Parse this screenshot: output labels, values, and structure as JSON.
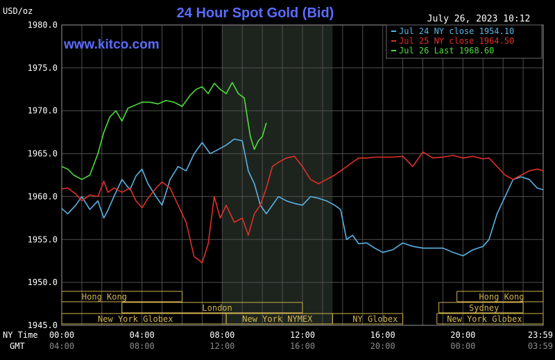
{
  "chart_data": {
    "type": "line",
    "title": "24 Hour Spot Gold (Bid)",
    "ylabel": "USD/oz",
    "timestamp": "July 26, 2023 10:12",
    "watermark": "www.kitco.com",
    "ylim": [
      1945,
      1980
    ],
    "y_ticks": [
      "1980.0",
      "1975.0",
      "1970.0",
      "1965.0",
      "1960.0",
      "1955.0",
      "1950.0",
      "1945.0"
    ],
    "y_tick_values": [
      1980,
      1975,
      1970,
      1965,
      1960,
      1955,
      1950,
      1945
    ],
    "xlim": [
      0,
      24
    ],
    "x_tick_values": [
      0,
      4,
      8,
      12,
      16,
      20,
      23.983
    ],
    "x_ticks_ny": [
      "00:00",
      "04:00",
      "08:00",
      "12:00",
      "16:00",
      "20:00",
      "23:59"
    ],
    "x_ticks_gmt": [
      "04:00",
      "08:00",
      "12:00",
      "16:00",
      "20:00",
      "00:00",
      "03:59"
    ],
    "row_labels": {
      "ny": "NY Time",
      "gmt": "GMT"
    },
    "grid": true,
    "highlight_band": [
      8.0,
      13.5
    ],
    "legend_position": "top-right",
    "colors": {
      "jul24": "#5ab4e6",
      "jul25": "#e0302a",
      "jul26": "#4fdc3c",
      "axis_text": "#ffffff",
      "title": "#5a6cff",
      "session": "#d2b450",
      "grid": "#505050"
    },
    "series": [
      {
        "name": "Jul 24 NY close 1954.10",
        "color": "#5ab4e6",
        "x": [
          0,
          0.3,
          0.7,
          1.0,
          1.4,
          1.8,
          2.1,
          2.3,
          2.6,
          3.0,
          3.4,
          3.7,
          4.0,
          4.3,
          4.7,
          5.0,
          5.4,
          5.8,
          6.2,
          6.6,
          7.0,
          7.4,
          7.8,
          8.2,
          8.6,
          9.0,
          9.3,
          9.6,
          9.9,
          10.2,
          10.5,
          10.8,
          11.2,
          11.6,
          12.0,
          12.4,
          12.8,
          13.2,
          13.6,
          13.9,
          14.2,
          14.5,
          14.8,
          15.2,
          15.6,
          16.0,
          16.5,
          17.0,
          17.5,
          18.0,
          18.5,
          19.0,
          19.5,
          20.0,
          20.5,
          21.0,
          21.3,
          21.7,
          22.1,
          22.5,
          22.9,
          23.3,
          23.7,
          24.0
        ],
        "values": [
          1958.6,
          1958.0,
          1959.0,
          1960.0,
          1958.5,
          1959.5,
          1957.5,
          1958.4,
          1960.0,
          1962.0,
          1960.8,
          1962.4,
          1963.2,
          1961.5,
          1960.0,
          1959.0,
          1962.0,
          1963.5,
          1963.0,
          1965.0,
          1966.3,
          1965.0,
          1965.5,
          1966.0,
          1966.7,
          1966.5,
          1963.0,
          1961.5,
          1959.0,
          1958.0,
          1959.0,
          1960.0,
          1959.5,
          1959.2,
          1959.0,
          1960.0,
          1959.8,
          1959.5,
          1959.0,
          1958.5,
          1955.0,
          1955.5,
          1954.5,
          1954.6,
          1954.0,
          1953.5,
          1953.8,
          1954.6,
          1954.2,
          1954.0,
          1954.0,
          1954.0,
          1953.5,
          1953.1,
          1953.8,
          1954.2,
          1955.0,
          1958.0,
          1960.0,
          1962.0,
          1962.3,
          1962.0,
          1961.0,
          1960.8
        ]
      },
      {
        "name": "Jul 25 NY close 1964.50",
        "color": "#e0302a",
        "x": [
          0,
          0.3,
          0.7,
          1.0,
          1.4,
          1.8,
          2.1,
          2.3,
          2.6,
          3.0,
          3.4,
          3.7,
          4.0,
          4.3,
          4.7,
          5.0,
          5.4,
          5.8,
          6.2,
          6.6,
          7.0,
          7.3,
          7.6,
          7.9,
          8.2,
          8.6,
          9.0,
          9.3,
          9.6,
          9.9,
          10.2,
          10.5,
          10.8,
          11.2,
          11.6,
          12.0,
          12.4,
          12.8,
          13.2,
          13.6,
          13.9,
          14.2,
          14.5,
          14.8,
          15.2,
          15.6,
          16.0,
          16.5,
          17.0,
          17.5,
          18.0,
          18.5,
          19.0,
          19.5,
          20.0,
          20.5,
          21.0,
          21.3,
          21.7,
          22.1,
          22.5,
          22.9,
          23.3,
          23.7,
          24.0
        ],
        "values": [
          1960.9,
          1961.0,
          1960.3,
          1959.5,
          1960.2,
          1960.0,
          1961.8,
          1960.5,
          1961.0,
          1960.5,
          1961.0,
          1959.5,
          1958.7,
          1959.8,
          1961.0,
          1961.7,
          1961.0,
          1959.0,
          1957.0,
          1953.0,
          1952.3,
          1954.5,
          1960.0,
          1957.5,
          1959.0,
          1957.0,
          1957.5,
          1955.5,
          1958.0,
          1959.0,
          1961.0,
          1963.5,
          1964.0,
          1964.5,
          1964.7,
          1963.5,
          1962.0,
          1961.5,
          1962.0,
          1962.5,
          1963.0,
          1963.5,
          1964.0,
          1964.5,
          1964.5,
          1964.6,
          1964.6,
          1964.6,
          1964.7,
          1963.5,
          1965.2,
          1964.5,
          1964.6,
          1964.8,
          1964.5,
          1964.7,
          1964.4,
          1964.5,
          1963.5,
          1962.5,
          1962.0,
          1962.5,
          1963.0,
          1963.2,
          1963.0
        ]
      },
      {
        "name": "Jul 26 Last 1968.60",
        "color": "#4fdc3c",
        "x": [
          0,
          0.3,
          0.6,
          1.0,
          1.4,
          1.8,
          2.1,
          2.4,
          2.7,
          3.0,
          3.3,
          3.6,
          4.0,
          4.4,
          4.8,
          5.2,
          5.6,
          6.0,
          6.4,
          6.7,
          7.0,
          7.3,
          7.6,
          7.9,
          8.2,
          8.5,
          8.8,
          9.1,
          9.4,
          9.6,
          9.8,
          10.0,
          10.2
        ],
        "values": [
          1963.5,
          1963.2,
          1962.5,
          1962.0,
          1962.5,
          1965.0,
          1967.5,
          1969.3,
          1970.0,
          1968.8,
          1970.3,
          1970.6,
          1971.0,
          1971.0,
          1970.8,
          1971.2,
          1971.0,
          1970.5,
          1971.8,
          1972.5,
          1972.8,
          1972.0,
          1973.2,
          1972.5,
          1972.0,
          1973.3,
          1972.0,
          1971.5,
          1967.0,
          1965.5,
          1966.5,
          1967.0,
          1968.6
        ]
      }
    ],
    "sessions": [
      {
        "label": "Hong Kong",
        "x0": 0.0,
        "x1": 6.0,
        "row": 0,
        "text_x": 1.0,
        "brackets": [
          0.0,
          1.0
        ]
      },
      {
        "label": "London",
        "x0": 3.0,
        "x1": 12.0,
        "row": 1,
        "text_x": 7.0,
        "brackets": [
          0.0,
          1.0
        ]
      },
      {
        "label": "New York Globex",
        "x0": 0.0,
        "x1": 8.2,
        "row": 2,
        "text_x": 1.8,
        "brackets": []
      },
      {
        "label": "New York NYMEX",
        "x0": 8.2,
        "x1": 13.5,
        "row": 2,
        "text_x": 9.0,
        "brackets": []
      },
      {
        "label": "NY Globex",
        "x0": 13.5,
        "x1": 17.0,
        "row": 2,
        "text_x": 14.5,
        "brackets": []
      },
      {
        "label": "Hong Kong",
        "x0": 19.7,
        "x1": 24.0,
        "row": 0,
        "text_x": 20.8,
        "brackets": []
      },
      {
        "label": "Sydney",
        "x0": 18.8,
        "x1": 23.0,
        "row": 1,
        "text_x": 20.3,
        "brackets": []
      },
      {
        "label": "New York Globex",
        "x0": 18.7,
        "x1": 24.0,
        "row": 2,
        "text_x": 19.2,
        "brackets": []
      }
    ]
  }
}
